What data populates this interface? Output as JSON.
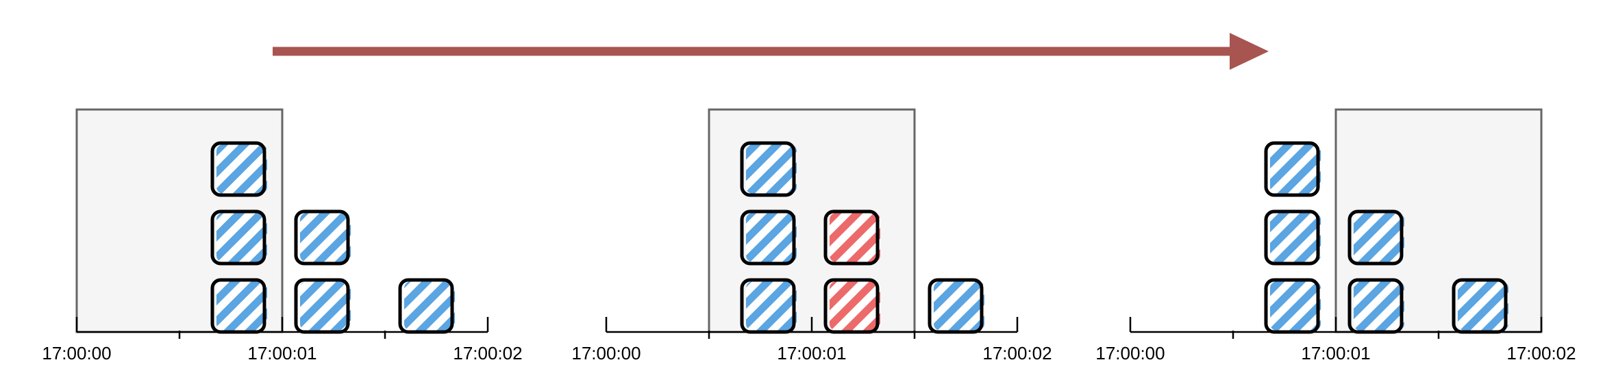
{
  "colors": {
    "arrow": "#a85450",
    "window_fill": "#f5f5f5",
    "window_stroke": "#666666",
    "block_normal": "#5aa5e2",
    "block_highlight": "#ec6a6a",
    "block_outline": "#000000",
    "axis": "#000000"
  },
  "arrow": {
    "direction": "right",
    "icon": "arrow-right-icon"
  },
  "panels": [
    {
      "axis_labels": [
        "17:00:00",
        "17:00:01",
        "17:00:02"
      ],
      "window": "first-second",
      "stacks": [
        {
          "slot": 1,
          "count": 3,
          "highlight": []
        },
        {
          "slot": 2,
          "count": 2,
          "highlight": []
        },
        {
          "slot": 3,
          "count": 1,
          "highlight": []
        }
      ]
    },
    {
      "axis_labels": [
        "17:00:00",
        "17:00:01",
        "17:00:02"
      ],
      "window": "middle",
      "stacks": [
        {
          "slot": 1,
          "count": 3,
          "highlight": []
        },
        {
          "slot": 2,
          "count": 2,
          "highlight": [
            0,
            1
          ]
        },
        {
          "slot": 3,
          "count": 1,
          "highlight": []
        }
      ]
    },
    {
      "axis_labels": [
        "17:00:00",
        "17:00:01",
        "17:00:02"
      ],
      "window": "second-second",
      "stacks": [
        {
          "slot": 1,
          "count": 3,
          "highlight": []
        },
        {
          "slot": 2,
          "count": 2,
          "highlight": []
        },
        {
          "slot": 3,
          "count": 1,
          "highlight": []
        }
      ]
    }
  ]
}
